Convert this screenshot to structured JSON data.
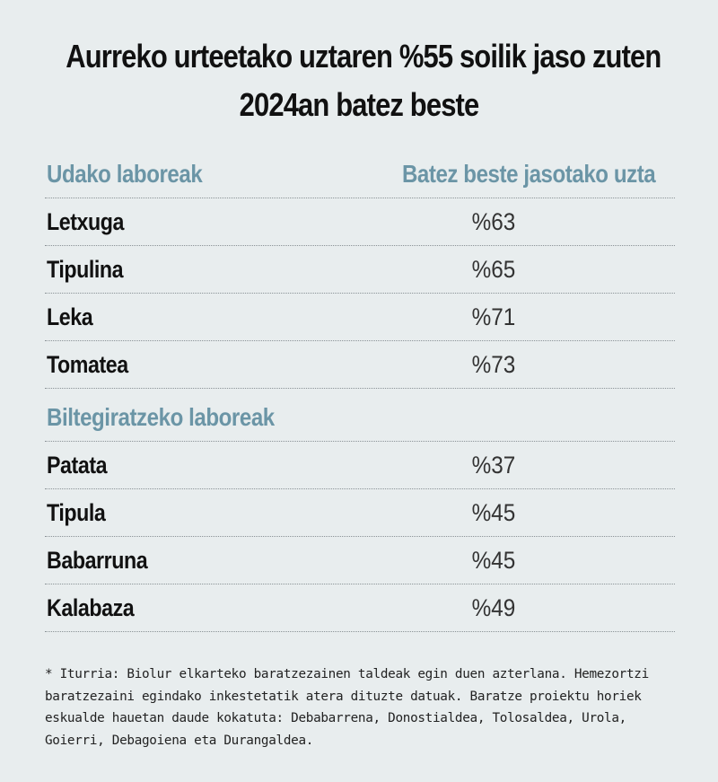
{
  "title": {
    "line1": "Aurreko urteetako uztaren %55 soilik jaso zuten",
    "line2": "2024an batez beste"
  },
  "colors": {
    "background": "#e8edee",
    "accent": "#6b95a6",
    "text": "#111111"
  },
  "chart_data": {
    "type": "table",
    "title": "Aurreko urteetako uztaren %55 soilik jaso zuten 2024an batez beste",
    "column_headers": [
      "Udako laboreak",
      "Batez beste jasotako uzta"
    ],
    "groups": [
      {
        "name": "Udako laboreak",
        "rows": [
          {
            "crop": "Letxuga",
            "display": "%63",
            "value": 63
          },
          {
            "crop": "Tipulina",
            "display": "%65",
            "value": 65
          },
          {
            "crop": "Leka",
            "display": "%71",
            "value": 71
          },
          {
            "crop": "Tomatea",
            "display": "%73",
            "value": 73
          }
        ]
      },
      {
        "name": "Biltegiratzeko laboreak",
        "rows": [
          {
            "crop": "Patata",
            "display": "%37",
            "value": 37
          },
          {
            "crop": "Tipula",
            "display": "%45",
            "value": 45
          },
          {
            "crop": "Babarruna",
            "display": "%45",
            "value": 45
          },
          {
            "crop": "Kalabaza",
            "display": "%49",
            "value": 49
          }
        ]
      }
    ]
  },
  "footnote": {
    "lines": [
      "* Iturria: Biolur elkarteko baratzezainen taldeak egin duen azterlana.  Hemezortzi",
      "baratzezaini egindako inkestetatik atera dituzte datuak. Baratze proiektu horiek",
      "eskualde hauetan daude kokatuta: Debabarrena, Donostialdea, Tolosaldea, Urola,",
      "Goierri, Debagoiena eta Durangaldea."
    ]
  }
}
